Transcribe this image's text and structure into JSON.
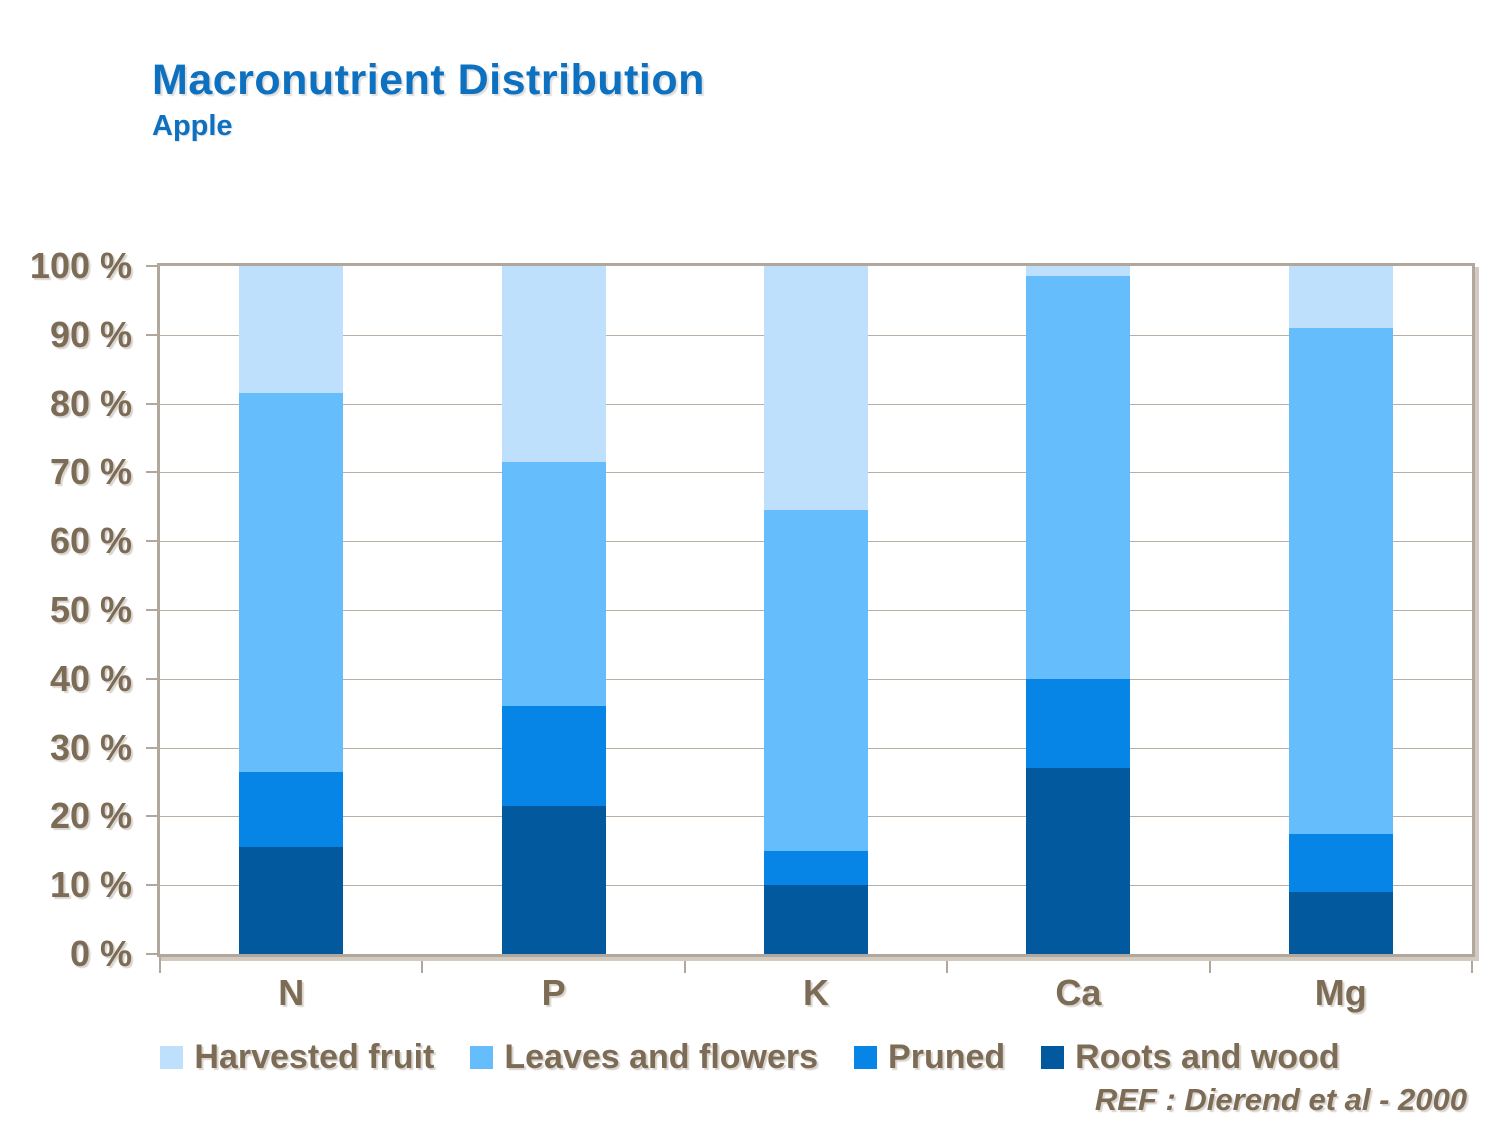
{
  "slide": {
    "title": "Macronutrient Distribution",
    "subtitle": "Apple",
    "reference": "REF :  Dierend et al - 2000"
  },
  "colors": {
    "title_blue": "#0d71bf",
    "text_brown": "#7c6b55",
    "axis": "#b1a79c",
    "gridline": "#b8aea3",
    "harvested": "#bee0fc",
    "leaves": "#66bdfc",
    "pruned": "#0685e6",
    "roots": "#02599e"
  },
  "chart_data": {
    "type": "bar",
    "stacked": true,
    "title": "Macronutrient Distribution",
    "subtitle": "Apple",
    "categories": [
      "N",
      "P",
      "K",
      "Ca",
      "Mg"
    ],
    "series": [
      {
        "name": "Harvested fruit",
        "color_key": "harvested",
        "values": [
          18.5,
          28.5,
          35.5,
          1.5,
          9
        ]
      },
      {
        "name": "Leaves and flowers",
        "color_key": "leaves",
        "values": [
          55,
          35.5,
          49.5,
          58.5,
          73.5
        ]
      },
      {
        "name": "Pruned",
        "color_key": "pruned",
        "values": [
          11,
          14.5,
          5,
          13,
          8.5
        ]
      },
      {
        "name": "Roots and wood",
        "color_key": "roots",
        "values": [
          15.5,
          21.5,
          10,
          27,
          9
        ]
      }
    ],
    "xlabel": "",
    "ylabel": "",
    "ylim": [
      0,
      100
    ],
    "y_tick_labels": [
      "0 %",
      "10 %",
      "20 %",
      "30 %",
      "40 %",
      "50 %",
      "60 %",
      "70 %",
      "80 %",
      "90 %",
      "100 %"
    ],
    "grid": true,
    "legend_position": "bottom"
  }
}
